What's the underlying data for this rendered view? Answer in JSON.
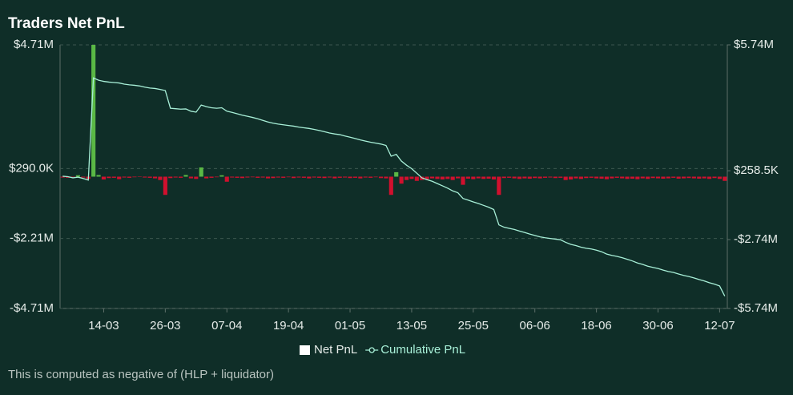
{
  "chart_data": {
    "type": "bar-line",
    "title": "Traders Net PnL",
    "footnote": "This is computed as negative of (HLP + liquidator)",
    "categories": [
      null,
      null,
      null,
      null,
      null,
      null,
      null,
      null,
      "14-03",
      null,
      null,
      null,
      null,
      null,
      null,
      null,
      null,
      null,
      null,
      null,
      "26-03",
      null,
      null,
      null,
      null,
      null,
      null,
      null,
      null,
      null,
      null,
      null,
      "07-04",
      null,
      null,
      null,
      null,
      null,
      null,
      null,
      null,
      null,
      null,
      null,
      "19-04",
      null,
      null,
      null,
      null,
      null,
      null,
      null,
      null,
      null,
      null,
      null,
      "01-05",
      null,
      null,
      null,
      null,
      null,
      null,
      null,
      null,
      null,
      null,
      null,
      "13-05",
      null,
      null,
      null,
      null,
      null,
      null,
      null,
      null,
      null,
      null,
      null,
      "25-05",
      null,
      null,
      null,
      null,
      null,
      null,
      null,
      null,
      null,
      null,
      null,
      "06-06",
      null,
      null,
      null,
      null,
      null,
      null,
      null,
      null,
      null,
      null,
      null,
      "18-06",
      null,
      null,
      null,
      null,
      null,
      null,
      null,
      null,
      null,
      null,
      null,
      "30-06",
      null,
      null,
      null,
      null,
      null,
      null,
      null,
      null,
      null,
      null,
      null,
      "12-07",
      null
    ],
    "series": [
      {
        "name": "Net PnL",
        "color": "#ffffff",
        "positive_color": "#5ab845",
        "negative_color": "#d0102e",
        "type": "bar",
        "values": [
          -30000,
          -40000,
          -20000,
          50000,
          -30000,
          -80000,
          4710000,
          60000,
          -100000,
          -50000,
          -40000,
          -90000,
          -30000,
          -40000,
          -20000,
          -10000,
          -30000,
          -40000,
          -60000,
          -120000,
          -650000,
          -50000,
          -30000,
          -40000,
          60000,
          -60000,
          -80000,
          330000,
          -60000,
          -40000,
          -20000,
          50000,
          -180000,
          -30000,
          -40000,
          -50000,
          -30000,
          -20000,
          -40000,
          -30000,
          -60000,
          -50000,
          -30000,
          -40000,
          -20000,
          -50000,
          -30000,
          -40000,
          -60000,
          -30000,
          -40000,
          -50000,
          -30000,
          -60000,
          -40000,
          -30000,
          -50000,
          -40000,
          -60000,
          -30000,
          -40000,
          -20000,
          -50000,
          -60000,
          -650000,
          160000,
          -250000,
          -120000,
          -80000,
          -150000,
          -120000,
          -90000,
          -60000,
          -80000,
          -100000,
          -80000,
          -120000,
          -60000,
          -290000,
          -70000,
          -90000,
          -60000,
          -80000,
          -70000,
          -100000,
          -650000,
          -50000,
          -40000,
          -60000,
          -80000,
          -60000,
          -70000,
          -50000,
          -60000,
          -40000,
          -30000,
          -50000,
          -40000,
          -120000,
          -100000,
          -60000,
          -80000,
          -50000,
          -40000,
          -60000,
          -70000,
          -90000,
          -60000,
          -40000,
          -60000,
          -80000,
          -70000,
          -90000,
          -60000,
          -80000,
          -50000,
          -60000,
          -70000,
          -60000,
          -40000,
          -70000,
          -60000,
          -50000,
          -60000,
          -70000,
          -60000,
          -80000,
          -50000,
          -80000,
          -150000
        ]
      },
      {
        "name": "Cumulative PnL",
        "color": "#a8f0d8",
        "type": "line",
        "axis": "y2",
        "values": [
          20000,
          0,
          -50000,
          -20000,
          -80000,
          -150000,
          4300000,
          4200000,
          4150000,
          4120000,
          4100000,
          4080000,
          4030000,
          4000000,
          3980000,
          3950000,
          3900000,
          3860000,
          3840000,
          3800000,
          3750000,
          2980000,
          2960000,
          2940000,
          2950000,
          2850000,
          2810000,
          3120000,
          3050000,
          3000000,
          2980000,
          3000000,
          2850000,
          2800000,
          2740000,
          2680000,
          2630000,
          2580000,
          2520000,
          2450000,
          2380000,
          2330000,
          2290000,
          2260000,
          2230000,
          2200000,
          2160000,
          2130000,
          2100000,
          2060000,
          2010000,
          1960000,
          1900000,
          1860000,
          1830000,
          1770000,
          1720000,
          1660000,
          1600000,
          1550000,
          1500000,
          1460000,
          1420000,
          1360000,
          890000,
          970000,
          680000,
          500000,
          350000,
          150000,
          -50000,
          -130000,
          -200000,
          -300000,
          -400000,
          -500000,
          -620000,
          -700000,
          -950000,
          -1020000,
          -1100000,
          -1170000,
          -1250000,
          -1330000,
          -1430000,
          -2100000,
          -2200000,
          -2250000,
          -2300000,
          -2370000,
          -2430000,
          -2500000,
          -2560000,
          -2620000,
          -2660000,
          -2690000,
          -2720000,
          -2750000,
          -2860000,
          -2950000,
          -3000000,
          -3070000,
          -3120000,
          -3150000,
          -3200000,
          -3270000,
          -3370000,
          -3430000,
          -3470000,
          -3530000,
          -3600000,
          -3670000,
          -3760000,
          -3820000,
          -3900000,
          -3950000,
          -4000000,
          -4070000,
          -4130000,
          -4170000,
          -4240000,
          -4300000,
          -4350000,
          -4410000,
          -4480000,
          -4540000,
          -4620000,
          -4680000,
          -4760000,
          -5200000
        ]
      }
    ],
    "ylim": [
      -4710000,
      4710000
    ],
    "yticks": [
      {
        "value": 4710000,
        "label": "$4.71M"
      },
      {
        "value": 290000,
        "label": "$290.0K"
      },
      {
        "value": -2210000,
        "label": "-$2.21M"
      },
      {
        "value": -4710000,
        "label": "-$4.71M"
      }
    ],
    "y2lim": [
      -5740000,
      5740000
    ],
    "y2ticks": [
      {
        "value": 5740000,
        "label": "$5.74M"
      },
      {
        "value": 258500,
        "label": "$258.5K"
      },
      {
        "value": -2740000,
        "label": "-$2.74M"
      },
      {
        "value": -5740000,
        "label": "-$5.74M"
      }
    ],
    "grid": true,
    "legend": "bottom"
  }
}
